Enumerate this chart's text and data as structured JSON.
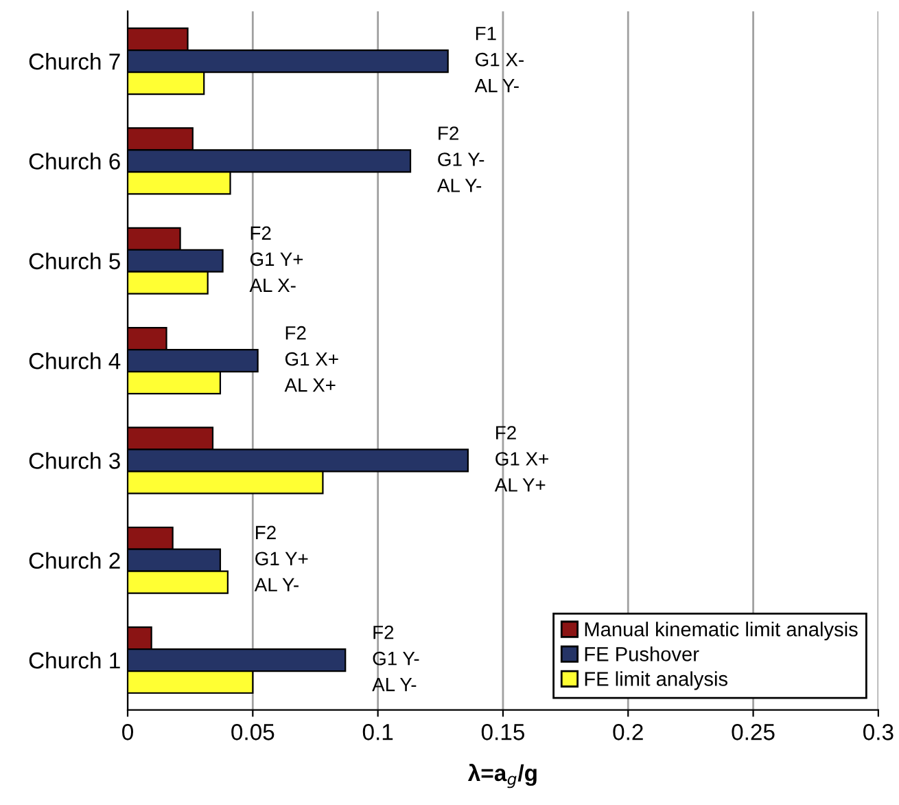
{
  "chart_data": {
    "type": "bar",
    "orientation": "horizontal",
    "xlabel": "λ=a$_{g}$/g",
    "categories": [
      "Church 7",
      "Church 6",
      "Church 5",
      "Church 4",
      "Church 3",
      "Church 2",
      "Church 1"
    ],
    "series": [
      {
        "name": "Manual kinematic limit analysis",
        "color": "#8b1414",
        "values": [
          0.024,
          0.026,
          0.021,
          0.0155,
          0.034,
          0.018,
          0.0095
        ]
      },
      {
        "name": "FE Pushover",
        "color": "#253466",
        "values": [
          0.128,
          0.113,
          0.038,
          0.052,
          0.136,
          0.037,
          0.087
        ]
      },
      {
        "name": "FE limit analysis",
        "color": "#ffff33",
        "values": [
          0.0305,
          0.041,
          0.032,
          0.037,
          0.078,
          0.04,
          0.05
        ]
      }
    ],
    "xlim": [
      0,
      0.3
    ],
    "xticks": [
      0,
      0.05,
      0.1,
      0.15,
      0.2,
      0.25,
      0.3
    ],
    "grid": "x",
    "legend": "bottom right",
    "annotations": [
      "F1\nG1 X-\nAL Y-",
      "F2\nG1 Y-\nAL Y-",
      "F2\nG1 Y+\nAL X-",
      "F2\nG1 X+\nAL X+",
      "F2\nG1 X+\nAL Y+",
      "F2\nG1 Y+\nAL Y-",
      "F2\nG1 Y-\nAL Y-"
    ]
  }
}
